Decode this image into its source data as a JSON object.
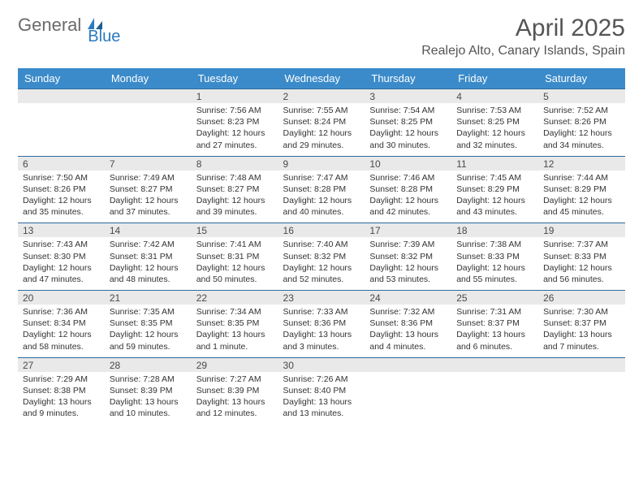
{
  "brand": {
    "part1": "General",
    "part2": "Blue"
  },
  "title": "April 2025",
  "location": "Realejo Alto, Canary Islands, Spain",
  "colors": {
    "headerBg": "#3b8bca",
    "headerText": "#ffffff",
    "dayNumBg": "#e9e9e9",
    "dayBorder": "#2d6aa0",
    "brandGray": "#6a6a6a",
    "brandBlue": "#2a7ac0",
    "bodyText": "#333333",
    "titleText": "#555555"
  },
  "typography": {
    "monthTitleSize": 30,
    "locationSize": 16,
    "weekdaySize": 13,
    "dayNumSize": 12,
    "cellTextSize": 10.5
  },
  "weekdays": [
    "Sunday",
    "Monday",
    "Tuesday",
    "Wednesday",
    "Thursday",
    "Friday",
    "Saturday"
  ],
  "weeks": [
    [
      {
        "n": "",
        "sr": "",
        "ss": "",
        "dl": ""
      },
      {
        "n": "",
        "sr": "",
        "ss": "",
        "dl": ""
      },
      {
        "n": "1",
        "sr": "Sunrise: 7:56 AM",
        "ss": "Sunset: 8:23 PM",
        "dl": "Daylight: 12 hours and 27 minutes."
      },
      {
        "n": "2",
        "sr": "Sunrise: 7:55 AM",
        "ss": "Sunset: 8:24 PM",
        "dl": "Daylight: 12 hours and 29 minutes."
      },
      {
        "n": "3",
        "sr": "Sunrise: 7:54 AM",
        "ss": "Sunset: 8:25 PM",
        "dl": "Daylight: 12 hours and 30 minutes."
      },
      {
        "n": "4",
        "sr": "Sunrise: 7:53 AM",
        "ss": "Sunset: 8:25 PM",
        "dl": "Daylight: 12 hours and 32 minutes."
      },
      {
        "n": "5",
        "sr": "Sunrise: 7:52 AM",
        "ss": "Sunset: 8:26 PM",
        "dl": "Daylight: 12 hours and 34 minutes."
      }
    ],
    [
      {
        "n": "6",
        "sr": "Sunrise: 7:50 AM",
        "ss": "Sunset: 8:26 PM",
        "dl": "Daylight: 12 hours and 35 minutes."
      },
      {
        "n": "7",
        "sr": "Sunrise: 7:49 AM",
        "ss": "Sunset: 8:27 PM",
        "dl": "Daylight: 12 hours and 37 minutes."
      },
      {
        "n": "8",
        "sr": "Sunrise: 7:48 AM",
        "ss": "Sunset: 8:27 PM",
        "dl": "Daylight: 12 hours and 39 minutes."
      },
      {
        "n": "9",
        "sr": "Sunrise: 7:47 AM",
        "ss": "Sunset: 8:28 PM",
        "dl": "Daylight: 12 hours and 40 minutes."
      },
      {
        "n": "10",
        "sr": "Sunrise: 7:46 AM",
        "ss": "Sunset: 8:28 PM",
        "dl": "Daylight: 12 hours and 42 minutes."
      },
      {
        "n": "11",
        "sr": "Sunrise: 7:45 AM",
        "ss": "Sunset: 8:29 PM",
        "dl": "Daylight: 12 hours and 43 minutes."
      },
      {
        "n": "12",
        "sr": "Sunrise: 7:44 AM",
        "ss": "Sunset: 8:29 PM",
        "dl": "Daylight: 12 hours and 45 minutes."
      }
    ],
    [
      {
        "n": "13",
        "sr": "Sunrise: 7:43 AM",
        "ss": "Sunset: 8:30 PM",
        "dl": "Daylight: 12 hours and 47 minutes."
      },
      {
        "n": "14",
        "sr": "Sunrise: 7:42 AM",
        "ss": "Sunset: 8:31 PM",
        "dl": "Daylight: 12 hours and 48 minutes."
      },
      {
        "n": "15",
        "sr": "Sunrise: 7:41 AM",
        "ss": "Sunset: 8:31 PM",
        "dl": "Daylight: 12 hours and 50 minutes."
      },
      {
        "n": "16",
        "sr": "Sunrise: 7:40 AM",
        "ss": "Sunset: 8:32 PM",
        "dl": "Daylight: 12 hours and 52 minutes."
      },
      {
        "n": "17",
        "sr": "Sunrise: 7:39 AM",
        "ss": "Sunset: 8:32 PM",
        "dl": "Daylight: 12 hours and 53 minutes."
      },
      {
        "n": "18",
        "sr": "Sunrise: 7:38 AM",
        "ss": "Sunset: 8:33 PM",
        "dl": "Daylight: 12 hours and 55 minutes."
      },
      {
        "n": "19",
        "sr": "Sunrise: 7:37 AM",
        "ss": "Sunset: 8:33 PM",
        "dl": "Daylight: 12 hours and 56 minutes."
      }
    ],
    [
      {
        "n": "20",
        "sr": "Sunrise: 7:36 AM",
        "ss": "Sunset: 8:34 PM",
        "dl": "Daylight: 12 hours and 58 minutes."
      },
      {
        "n": "21",
        "sr": "Sunrise: 7:35 AM",
        "ss": "Sunset: 8:35 PM",
        "dl": "Daylight: 12 hours and 59 minutes."
      },
      {
        "n": "22",
        "sr": "Sunrise: 7:34 AM",
        "ss": "Sunset: 8:35 PM",
        "dl": "Daylight: 13 hours and 1 minute."
      },
      {
        "n": "23",
        "sr": "Sunrise: 7:33 AM",
        "ss": "Sunset: 8:36 PM",
        "dl": "Daylight: 13 hours and 3 minutes."
      },
      {
        "n": "24",
        "sr": "Sunrise: 7:32 AM",
        "ss": "Sunset: 8:36 PM",
        "dl": "Daylight: 13 hours and 4 minutes."
      },
      {
        "n": "25",
        "sr": "Sunrise: 7:31 AM",
        "ss": "Sunset: 8:37 PM",
        "dl": "Daylight: 13 hours and 6 minutes."
      },
      {
        "n": "26",
        "sr": "Sunrise: 7:30 AM",
        "ss": "Sunset: 8:37 PM",
        "dl": "Daylight: 13 hours and 7 minutes."
      }
    ],
    [
      {
        "n": "27",
        "sr": "Sunrise: 7:29 AM",
        "ss": "Sunset: 8:38 PM",
        "dl": "Daylight: 13 hours and 9 minutes."
      },
      {
        "n": "28",
        "sr": "Sunrise: 7:28 AM",
        "ss": "Sunset: 8:39 PM",
        "dl": "Daylight: 13 hours and 10 minutes."
      },
      {
        "n": "29",
        "sr": "Sunrise: 7:27 AM",
        "ss": "Sunset: 8:39 PM",
        "dl": "Daylight: 13 hours and 12 minutes."
      },
      {
        "n": "30",
        "sr": "Sunrise: 7:26 AM",
        "ss": "Sunset: 8:40 PM",
        "dl": "Daylight: 13 hours and 13 minutes."
      },
      {
        "n": "",
        "sr": "",
        "ss": "",
        "dl": ""
      },
      {
        "n": "",
        "sr": "",
        "ss": "",
        "dl": ""
      },
      {
        "n": "",
        "sr": "",
        "ss": "",
        "dl": ""
      }
    ]
  ]
}
